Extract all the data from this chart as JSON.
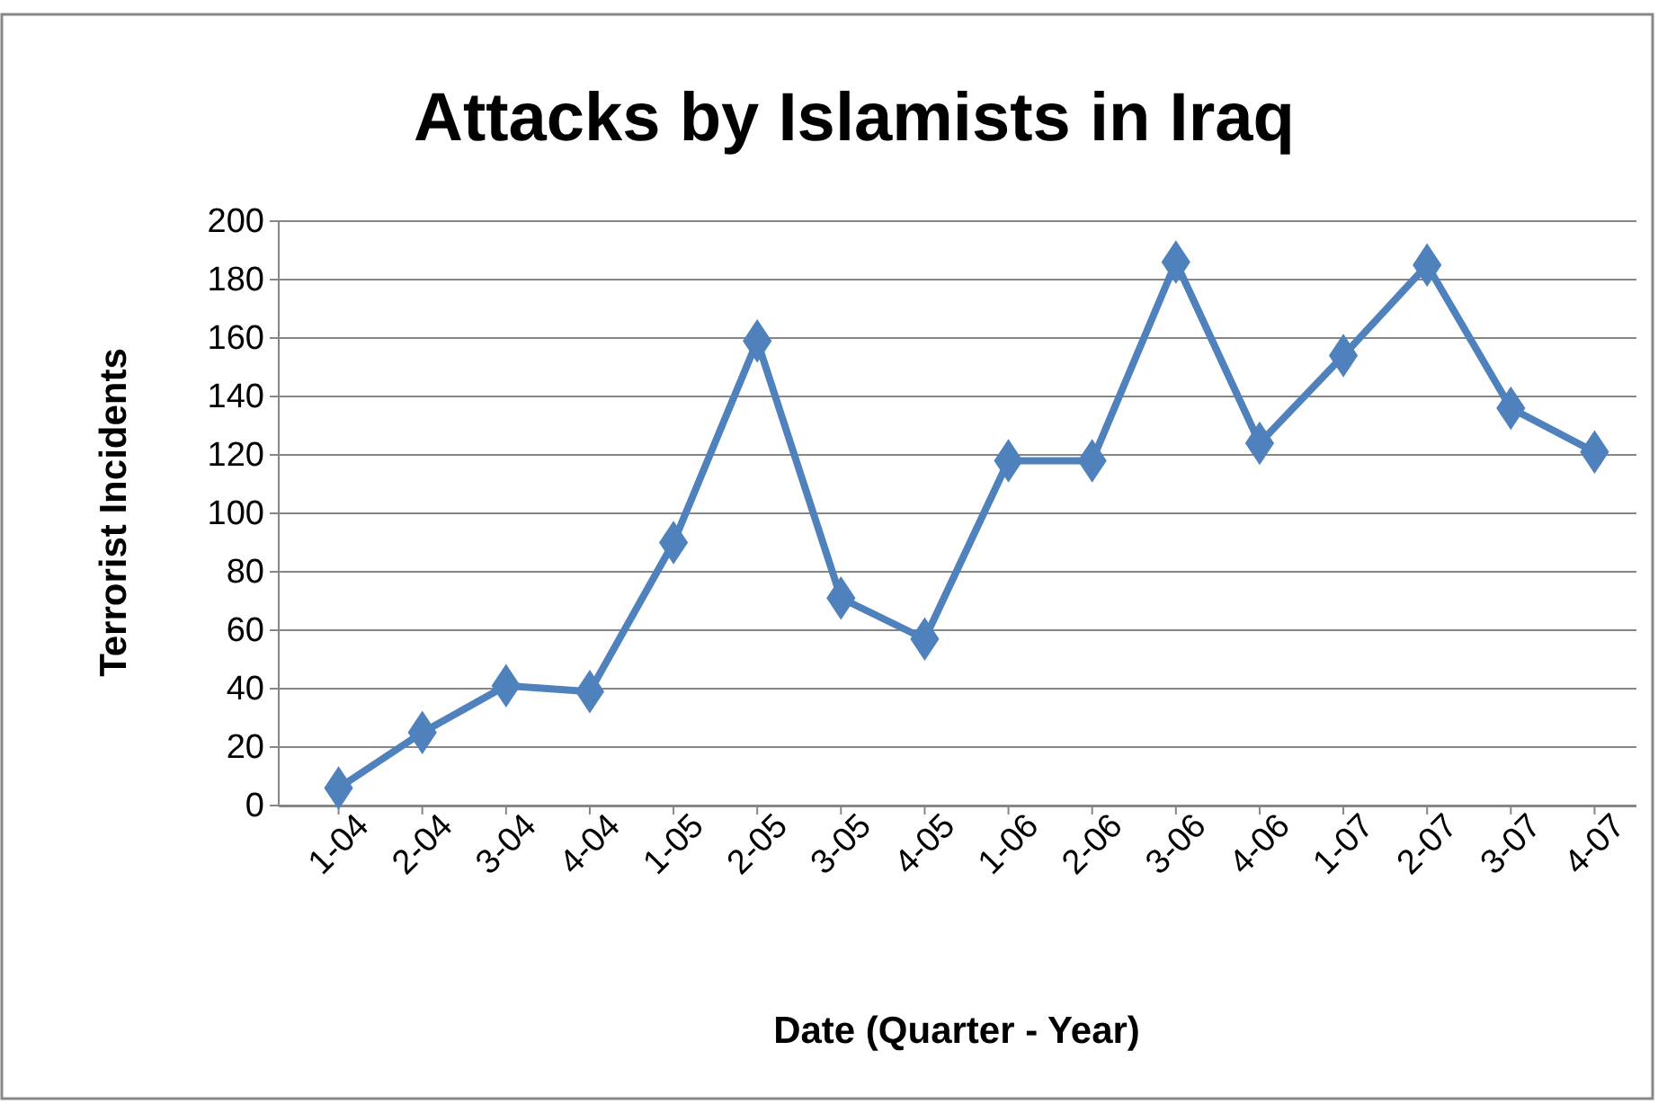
{
  "chart_data": {
    "type": "line",
    "title": "Attacks by Islamists in Iraq",
    "xlabel": "Date (Quarter - Year)",
    "ylabel": "Terrorist Incidents",
    "categories": [
      "1-04",
      "2-04",
      "3-04",
      "4-04",
      "1-05",
      "2-05",
      "3-05",
      "4-05",
      "1-06",
      "2-06",
      "3-06",
      "4-06",
      "1-07",
      "2-07",
      "3-07",
      "4-07"
    ],
    "series": [
      {
        "color": "#4f81bd",
        "values": [
          6,
          25,
          41,
          39,
          90,
          159,
          71,
          57,
          118,
          118,
          186,
          124,
          154,
          185,
          136,
          121
        ]
      }
    ],
    "ylim": [
      0,
      200
    ],
    "yticks": [
      0,
      20,
      40,
      60,
      80,
      100,
      120,
      140,
      160,
      180,
      200
    ],
    "grid": "y",
    "marker": "diamond",
    "line_style": "solid"
  }
}
